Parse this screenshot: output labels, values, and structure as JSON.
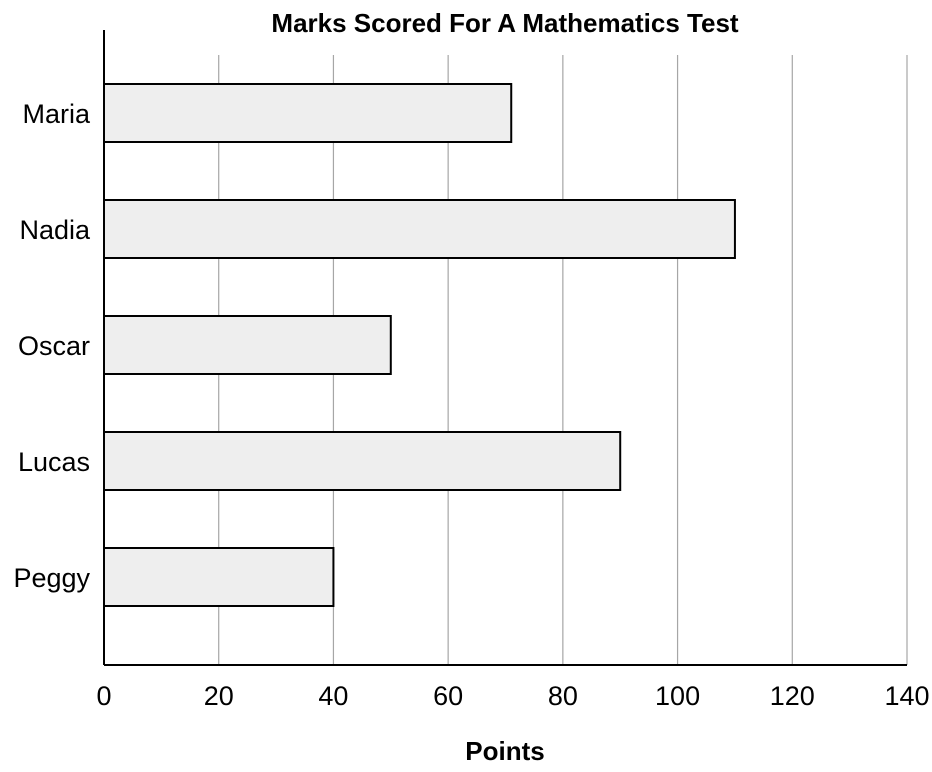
{
  "chart_data": {
    "type": "bar",
    "orientation": "horizontal",
    "title": "Marks Scored For A Mathematics Test",
    "xlabel": "Points",
    "ylabel": "",
    "categories": [
      "Maria",
      "Nadia",
      "Oscar",
      "Lucas",
      "Peggy"
    ],
    "values": [
      71,
      110,
      50,
      90,
      40
    ],
    "xlim": [
      0,
      140
    ],
    "xticks": [
      0,
      20,
      40,
      60,
      80,
      100,
      120,
      140
    ],
    "xtick_labels": [
      "0",
      "20",
      "40",
      "60",
      "80",
      "100",
      "120",
      "140"
    ],
    "grid": "vertical",
    "legend": "none",
    "colors": {
      "bar_fill": "#eeeeee",
      "bar_stroke": "#000000",
      "grid": "#a6a6a6",
      "axis": "#000000"
    }
  }
}
